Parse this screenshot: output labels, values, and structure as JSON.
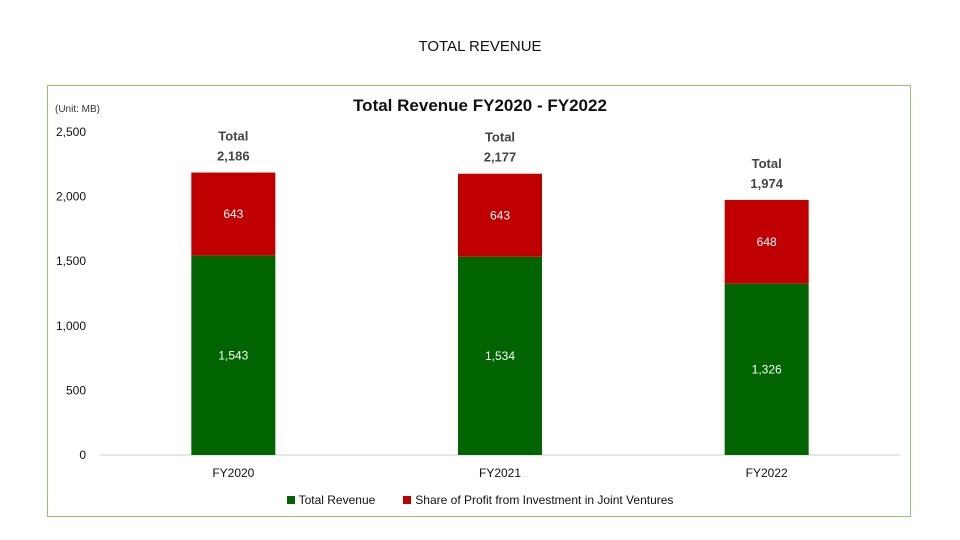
{
  "page_title": "TOTAL REVENUE",
  "unit_label": "(Unit: MB)",
  "legend": {
    "items": [
      {
        "label": "Total Revenue",
        "color": "#006400"
      },
      {
        "label": "Share of Profit from Investment in Joint Ventures",
        "color": "#c00000"
      }
    ]
  },
  "chart_data": {
    "type": "bar",
    "stacked": true,
    "title": "Total Revenue FY2020 - FY2022",
    "xlabel": "",
    "ylabel": "",
    "categories": [
      "FY2020",
      "FY2021",
      "FY2022"
    ],
    "ylim": [
      0,
      2500
    ],
    "yticks": [
      0,
      500,
      1000,
      1500,
      2000,
      2500
    ],
    "ytick_labels": [
      "0",
      "500",
      "1,000",
      "1,500",
      "2,000",
      "2,500"
    ],
    "series": [
      {
        "name": "Total Revenue",
        "color": "#006400",
        "values": [
          1543,
          1534,
          1326
        ],
        "labels": [
          "1,543",
          "1,534",
          "1,326"
        ]
      },
      {
        "name": "Share of Profit from Investment in Joint Ventures",
        "color": "#c00000",
        "values": [
          643,
          643,
          648
        ],
        "labels": [
          "643",
          "643",
          "648"
        ]
      }
    ],
    "totals": {
      "prefix": "Total",
      "values": [
        2186,
        2177,
        1974
      ],
      "labels": [
        "2,186",
        "2,177",
        "1,974"
      ]
    },
    "grid": false,
    "legend_position": "bottom"
  }
}
